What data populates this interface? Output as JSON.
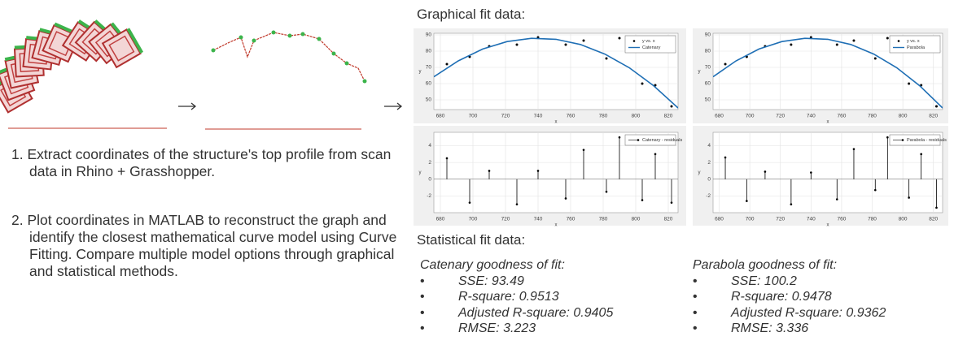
{
  "graphical_title": "Graphical fit data:",
  "statistical_title": "Statistical fit data:",
  "steps": [
    "1. Extract coordinates of the structure's top profile from scan data in Rhino + Grasshopper.",
    "2. Plot coordinates in MATLAB to reconstruct the graph and identify the closest mathematical curve model using Curve Fitting. Compare multiple model options through graphical and statistical methods."
  ],
  "fits": [
    {
      "heading": "Catenary goodness of fit:",
      "items": [
        "SSE: 93.49",
        "R-square: 0.9513",
        "Adjusted R-square: 0.9405",
        "RMSE: 3.223"
      ]
    },
    {
      "heading": "Parabola goodness of fit:",
      "items": [
        "SSE: 100.2",
        "R-square: 0.9478",
        "Adjusted R-square: 0.9362",
        "RMSE: 3.336"
      ]
    }
  ],
  "chart_data": [
    {
      "type": "scatter",
      "xlabel": "x",
      "ylabel": "y",
      "xlim": [
        676,
        826
      ],
      "ylim": [
        44,
        91
      ],
      "xticks": [
        680,
        700,
        720,
        740,
        760,
        780,
        800,
        820
      ],
      "yticks": [
        50,
        60,
        70,
        80,
        90
      ],
      "grid": true,
      "legend": "upper right",
      "series": [
        {
          "name": "y vs. x",
          "type": "scatter",
          "color": "#000000",
          "x": [
            684,
            698,
            710,
            727,
            740,
            757,
            768,
            782,
            790,
            804,
            812,
            822
          ],
          "values": [
            72,
            76.5,
            83,
            84,
            88.5,
            84,
            86.5,
            75.5,
            88,
            60,
            59,
            46
          ]
        },
        {
          "name": "Catenary",
          "type": "line",
          "color": "#1f6fb5",
          "x": [
            676,
            691,
            706,
            721,
            736,
            751,
            766,
            781,
            796,
            811,
            826
          ],
          "values": [
            64.2,
            74,
            81.3,
            85.9,
            87.9,
            87.3,
            84.1,
            78.2,
            69.8,
            58.7,
            45
          ]
        }
      ]
    },
    {
      "type": "stem",
      "xlabel": "x",
      "ylabel": "y",
      "xlim": [
        676,
        826
      ],
      "ylim": [
        -4,
        5.6
      ],
      "xticks": [
        680,
        700,
        720,
        740,
        760,
        780,
        800,
        820
      ],
      "yticks": [
        -2,
        0,
        2,
        4
      ],
      "grid": true,
      "legend": "upper right",
      "series": [
        {
          "name": "Catenary - residuals",
          "type": "stem",
          "color": "#000000",
          "x": [
            684,
            698,
            710,
            727,
            740,
            757,
            768,
            782,
            790,
            804,
            812,
            822
          ],
          "values": [
            2.5,
            -2.8,
            1,
            -3,
            1,
            -2.3,
            3.5,
            -1.5,
            5,
            -2.5,
            3,
            -2.8
          ]
        }
      ]
    },
    {
      "type": "scatter",
      "xlabel": "x",
      "ylabel": "y",
      "xlim": [
        676,
        826
      ],
      "ylim": [
        44,
        91
      ],
      "xticks": [
        680,
        700,
        720,
        740,
        760,
        780,
        800,
        820
      ],
      "yticks": [
        50,
        60,
        70,
        80,
        90
      ],
      "grid": true,
      "legend": "upper right",
      "series": [
        {
          "name": "y vs. x",
          "type": "scatter",
          "color": "#000000",
          "x": [
            684,
            698,
            710,
            727,
            740,
            757,
            768,
            782,
            790,
            804,
            812,
            822
          ],
          "values": [
            72,
            76.5,
            83,
            84,
            88.5,
            84,
            86.5,
            75.5,
            88,
            60,
            59,
            46
          ]
        },
        {
          "name": "Parabola",
          "type": "line",
          "color": "#1f6fb5",
          "x": [
            676,
            691,
            706,
            721,
            736,
            751,
            766,
            781,
            796,
            811,
            826
          ],
          "values": [
            64.2,
            74,
            81.3,
            85.9,
            87.9,
            87.3,
            84.1,
            78.2,
            69.8,
            58.7,
            45
          ]
        }
      ]
    },
    {
      "type": "stem",
      "xlabel": "x",
      "ylabel": "y",
      "xlim": [
        676,
        826
      ],
      "ylim": [
        -4,
        5.6
      ],
      "xticks": [
        680,
        700,
        720,
        740,
        760,
        780,
        800,
        820
      ],
      "yticks": [
        -2,
        0,
        2,
        4
      ],
      "grid": true,
      "legend": "upper right",
      "series": [
        {
          "name": "Parabola - residuals",
          "type": "stem",
          "color": "#000000",
          "x": [
            684,
            698,
            710,
            727,
            740,
            757,
            768,
            782,
            790,
            804,
            812,
            822
          ],
          "values": [
            2.6,
            -2.6,
            0.9,
            -3,
            0.8,
            -2.4,
            3.6,
            -1.3,
            5,
            -2.2,
            3,
            -3.4
          ]
        }
      ]
    }
  ]
}
